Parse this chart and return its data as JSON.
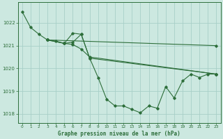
{
  "title": "Graphe pression niveau de la mer (hPa)",
  "bg_color": "#cce8e0",
  "grid_color": "#a8cfc8",
  "line_color": "#2d6e3a",
  "xlim": [
    -0.5,
    23.5
  ],
  "ylim": [
    1017.6,
    1022.9
  ],
  "yticks": [
    1018,
    1019,
    1020,
    1021,
    1022
  ],
  "xticks": [
    0,
    1,
    2,
    3,
    4,
    5,
    6,
    7,
    8,
    9,
    10,
    11,
    12,
    13,
    14,
    15,
    16,
    17,
    18,
    19,
    20,
    21,
    22,
    23
  ],
  "series": [
    {
      "x": [
        0,
        1,
        2,
        3,
        4,
        5,
        6,
        7,
        8,
        9,
        10,
        11,
        12,
        13,
        14,
        15,
        16,
        17,
        18,
        19,
        20,
        21,
        22,
        23
      ],
      "y": [
        1022.5,
        1021.8,
        1021.5,
        1021.25,
        1021.2,
        1021.1,
        1021.15,
        1021.5,
        1020.45,
        1019.6,
        1018.65,
        1018.35,
        1018.35,
        1018.2,
        1018.05,
        1018.35,
        1018.25,
        1019.2,
        1018.7,
        1019.45,
        1019.75,
        1019.6,
        1019.75,
        1019.75
      ]
    },
    {
      "x": [
        3,
        23
      ],
      "y": [
        1021.25,
        1021.0
      ]
    },
    {
      "x": [
        3,
        5,
        6,
        7,
        8,
        23
      ],
      "y": [
        1021.25,
        1021.1,
        1021.55,
        1021.5,
        1020.45,
        1019.75
      ]
    },
    {
      "x": [
        3,
        5,
        6,
        7,
        8,
        23
      ],
      "y": [
        1021.25,
        1021.1,
        1021.05,
        1020.85,
        1020.5,
        1019.75
      ]
    }
  ]
}
